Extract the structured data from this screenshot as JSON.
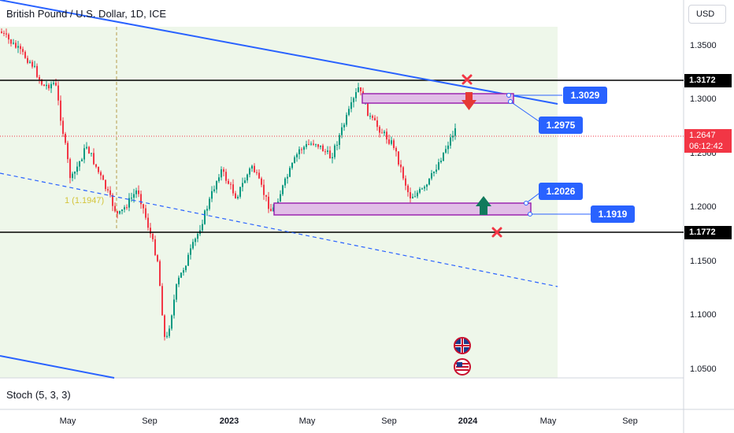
{
  "header": {
    "symbol_title": "British Pound / U.S. Dollar, 1D, ICE",
    "currency": "USD"
  },
  "price_axis": {
    "ticks": [
      "1.3500",
      "1.3000",
      "1.2500",
      "1.2000",
      "1.1500",
      "1.1000",
      "1.0500"
    ],
    "current_price": "1.2647",
    "countdown": "06:12:42"
  },
  "time_axis": {
    "ticks": [
      "May",
      "Sep",
      "2023",
      "May",
      "Sep",
      "2024",
      "May",
      "Sep"
    ]
  },
  "levels": {
    "upper": "1.3172",
    "lower": "1.1772"
  },
  "callouts": {
    "a": "1.3029",
    "b": "1.2975",
    "c": "1.2026",
    "d": "1.1919"
  },
  "annotation_label": "1 (1.1947)",
  "indicator": {
    "label": "Stoch (5, 3, 3)"
  },
  "colors": {
    "trendline": "#2962ff",
    "zone_border": "#9c27b0",
    "zone_fill": "#e1bee7",
    "bear_arrow": "#e53935",
    "bull_arrow": "#0f7a5c",
    "cross": "#f23645",
    "background_tint": "#eef7ea"
  },
  "icons": [
    "uk-flag-icon",
    "us-flag-icon",
    "down-arrow-icon",
    "up-arrow-icon",
    "cross-icon"
  ]
}
